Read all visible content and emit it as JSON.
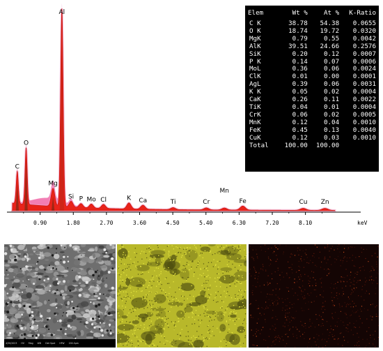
{
  "chart_data": {
    "type": "area",
    "title": "",
    "xlabel": "keV",
    "ylabel": "",
    "x_ticks": [
      0.9,
      1.8,
      2.7,
      3.6,
      4.5,
      5.4,
      6.3,
      7.2,
      8.1
    ],
    "x_tick_labels": [
      "0.90",
      "1.80",
      "2.70",
      "3.60",
      "4.50",
      "5.40",
      "6.30",
      "7.20",
      "8.10"
    ],
    "xlim": [
      0.0,
      9.6
    ],
    "ylim": [
      0,
      100
    ],
    "peaks": [
      {
        "label": "C",
        "x": 0.28,
        "y": 16
      },
      {
        "label": "O",
        "x": 0.52,
        "y": 28
      },
      {
        "label": "Mg",
        "x": 1.25,
        "y": 9
      },
      {
        "label": "Al",
        "x": 1.49,
        "y": 98
      },
      {
        "label": "Si",
        "x": 1.74,
        "y": 3
      },
      {
        "label": "P",
        "x": 2.01,
        "y": 2
      },
      {
        "label": "Mo",
        "x": 2.29,
        "y": 2
      },
      {
        "label": "Cl",
        "x": 2.62,
        "y": 2
      },
      {
        "label": "K",
        "x": 3.31,
        "y": 3
      },
      {
        "label": "Ca",
        "x": 3.69,
        "y": 2
      },
      {
        "label": "Ti",
        "x": 4.51,
        "y": 1
      },
      {
        "label": "Cr",
        "x": 5.41,
        "y": 1
      },
      {
        "label": "Mn",
        "x": 5.9,
        "y": 1
      },
      {
        "label": "Fe",
        "x": 6.4,
        "y": 2
      },
      {
        "label": "Cu",
        "x": 8.04,
        "y": 1
      },
      {
        "label": "Zn",
        "x": 8.63,
        "y": 1
      }
    ],
    "table": {
      "columns": [
        "Elem",
        "Wt %",
        "At %",
        "K-Ratio"
      ],
      "rows": [
        [
          "C K",
          "38.78",
          "54.38",
          "0.0655"
        ],
        [
          "O K",
          "18.74",
          "19.72",
          "0.0320"
        ],
        [
          "MgK",
          "0.79",
          "0.55",
          "0.0042"
        ],
        [
          "AlK",
          "39.51",
          "24.66",
          "0.2576"
        ],
        [
          "SiK",
          "0.20",
          "0.12",
          "0.0007"
        ],
        [
          "P K",
          "0.14",
          "0.07",
          "0.0006"
        ],
        [
          "MoL",
          "0.36",
          "0.06",
          "0.0024"
        ],
        [
          "ClK",
          "0.01",
          "0.00",
          "0.0001"
        ],
        [
          "AgL",
          "0.39",
          "0.06",
          "0.0031"
        ],
        [
          "K K",
          "0.05",
          "0.02",
          "0.0004"
        ],
        [
          "CaK",
          "0.26",
          "0.11",
          "0.0022"
        ],
        [
          "TiK",
          "0.04",
          "0.01",
          "0.0004"
        ],
        [
          "CrK",
          "0.06",
          "0.02",
          "0.0005"
        ],
        [
          "MnK",
          "0.12",
          "0.04",
          "0.0010"
        ],
        [
          "FeK",
          "0.45",
          "0.13",
          "0.0040"
        ],
        [
          "CuK",
          "0.12",
          "0.03",
          "0.0010"
        ],
        [
          "Total",
          "100.00",
          "100.00",
          ""
        ]
      ]
    }
  },
  "colors": {
    "spectrum_fill": "#e8231a",
    "spectrum_halo": "#f2a0c8",
    "peak_dark": "#7a2a14",
    "table_bg": "#000000",
    "table_text": "#ffffff",
    "map_yellow": "#b8b82a",
    "map_red_bg": "#140504"
  },
  "sem_footer": [
    "4/30/2023",
    "HV",
    "Mag",
    "WD",
    "Det Spot",
    "HFW",
    "200.0μm"
  ]
}
